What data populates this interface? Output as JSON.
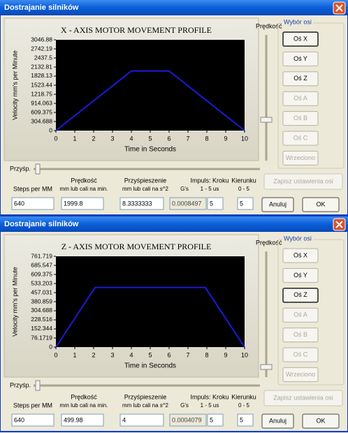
{
  "windows": [
    {
      "title": "Dostrajanie silników",
      "chart_data": {
        "type": "line",
        "title": "X - AXIS MOTOR MOVEMENT PROFILE",
        "x_label": "Time in Seconds",
        "y_label": "Velocity mm's per Minute",
        "x": [
          0,
          4,
          6,
          10
        ],
        "values": [
          0,
          1999.8,
          1999.8,
          0
        ],
        "color": "#1a1ad8",
        "xlim": [
          0,
          10
        ],
        "xticks": [
          0,
          1,
          2,
          3,
          4,
          5,
          6,
          7,
          8,
          9,
          10
        ],
        "ylim": [
          0,
          3046.88
        ],
        "yticks": [
          0,
          304.688,
          609.375,
          914.063,
          1218.75,
          1523.44,
          1828.13,
          2132.81,
          2437.5,
          2742.19,
          3046.88
        ]
      },
      "speed_label": "Prędkość",
      "axis_group": {
        "title": "Wybór osi",
        "buttons": [
          {
            "label": "Oś X",
            "enabled": true,
            "selected": true
          },
          {
            "label": "Oś Y",
            "enabled": true
          },
          {
            "label": "Oś Z",
            "enabled": true
          },
          {
            "label": "Oś A",
            "enabled": false
          },
          {
            "label": "Oś B",
            "enabled": false
          },
          {
            "label": "Oś C",
            "enabled": false
          },
          {
            "label": "Wrzeciono",
            "enabled": false
          }
        ]
      },
      "save_button": "Zapisz ustawienia osi",
      "accel_label": "Przyśp.",
      "fields": [
        {
          "label": "Steps per MM",
          "value": "640"
        },
        {
          "label": "Prędkość",
          "sublabel": "mm lub cali na min.",
          "value": "1999.8"
        },
        {
          "label": "Przyśpieszenie",
          "sublabel": "mm lub cali na s^2",
          "value": "8.3333333"
        },
        {
          "sublabel": "G's",
          "value": "0.0008497",
          "readonly": true
        },
        {
          "label": "Impuls:  Kroku",
          "sublabel": "1 - 5 us",
          "value": "5"
        },
        {
          "label": "Kierunku",
          "sublabel": "0 - 5",
          "value": "5"
        }
      ],
      "cancel_button": "Anuluj",
      "ok_button": "OK"
    },
    {
      "title": "Dostrajanie silników",
      "chart_data": {
        "type": "line",
        "title": "Z - AXIS MOTOR MOVEMENT PROFILE",
        "x_label": "Time in Seconds",
        "y_label": "Velocity mm's per Minute",
        "x": [
          0,
          2.08,
          7.92,
          10
        ],
        "values": [
          0,
          499.98,
          499.98,
          0
        ],
        "color": "#1a1ad8",
        "xlim": [
          0,
          10
        ],
        "xticks": [
          0,
          1,
          2,
          3,
          4,
          5,
          6,
          7,
          8,
          9,
          10
        ],
        "ylim": [
          0,
          761.719
        ],
        "yticks": [
          0,
          76.1719,
          152.344,
          228.516,
          304.688,
          380.859,
          457.031,
          533.203,
          609.375,
          685.547,
          761.719
        ]
      },
      "speed_label": "Prędkość",
      "axis_group": {
        "title": "Wybór osi",
        "buttons": [
          {
            "label": "Oś X",
            "enabled": true
          },
          {
            "label": "Oś Y",
            "enabled": true
          },
          {
            "label": "Oś Z",
            "enabled": true,
            "selected": true
          },
          {
            "label": "Oś A",
            "enabled": false
          },
          {
            "label": "Oś B",
            "enabled": false
          },
          {
            "label": "Oś C",
            "enabled": false
          },
          {
            "label": "Wrzeciono",
            "enabled": false
          }
        ]
      },
      "save_button": "Zapisz ustawienia osi",
      "accel_label": "Przyśp.",
      "fields": [
        {
          "label": "Steps per MM",
          "value": "640"
        },
        {
          "label": "Prędkość",
          "sublabel": "mm lub cali na min.",
          "value": "499.98"
        },
        {
          "label": "Przyśpieszenie",
          "sublabel": "mm lub cali na s^2",
          "value": "4"
        },
        {
          "sublabel": "G's",
          "value": "0.0004079",
          "readonly": true
        },
        {
          "label": "Impuls:  Kroku",
          "sublabel": "1 - 5 us",
          "value": "5"
        },
        {
          "label": "Kierunku",
          "sublabel": "0 - 5",
          "value": "5"
        }
      ],
      "cancel_button": "Anuluj",
      "ok_button": "OK"
    }
  ]
}
